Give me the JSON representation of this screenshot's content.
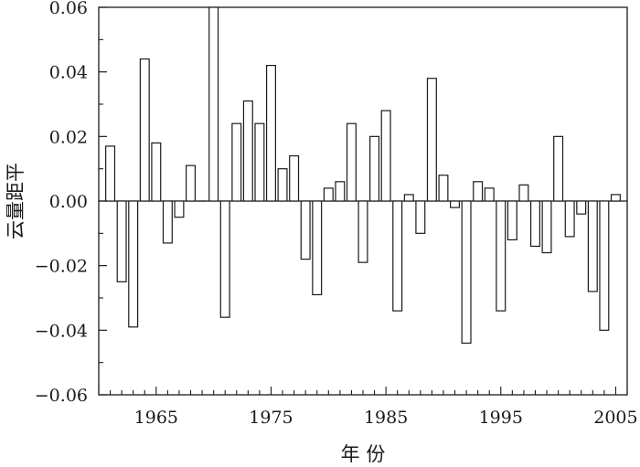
{
  "chart_data": {
    "type": "bar",
    "xlabel": "年 份",
    "ylabel": "云量距平",
    "xlim": [
      1960,
      2006
    ],
    "ylim": [
      -0.06,
      0.06
    ],
    "grid": false,
    "y_ticks": [
      {
        "value": 0.06,
        "label": "0.06"
      },
      {
        "value": 0.04,
        "label": "0.04"
      },
      {
        "value": 0.02,
        "label": "0.02"
      },
      {
        "value": 0.0,
        "label": "0.00"
      },
      {
        "value": -0.02,
        "label": "−0.02"
      },
      {
        "value": -0.04,
        "label": "−0.04"
      },
      {
        "value": -0.06,
        "label": "−0.06"
      }
    ],
    "x_ticks": [
      {
        "value": 1965,
        "label": "1965"
      },
      {
        "value": 1975,
        "label": "1975"
      },
      {
        "value": 1985,
        "label": "1985"
      },
      {
        "value": 1995,
        "label": "1995"
      },
      {
        "value": 2005,
        "label": "2005"
      }
    ],
    "bar_fill": "#ffffff",
    "bar_stroke": "#1a1a1a",
    "x": [
      1961,
      1962,
      1963,
      1964,
      1965,
      1966,
      1967,
      1968,
      1969,
      1970,
      1971,
      1972,
      1973,
      1974,
      1975,
      1976,
      1977,
      1978,
      1979,
      1980,
      1981,
      1982,
      1983,
      1984,
      1985,
      1986,
      1987,
      1988,
      1989,
      1990,
      1991,
      1992,
      1993,
      1994,
      1995,
      1996,
      1997,
      1998,
      1999,
      2000,
      2001,
      2002,
      2003,
      2004,
      2005
    ],
    "values": [
      0.017,
      -0.025,
      -0.039,
      0.044,
      0.018,
      -0.013,
      -0.005,
      0.011,
      0.0,
      0.06,
      -0.036,
      0.024,
      0.031,
      0.024,
      0.042,
      0.01,
      0.014,
      -0.018,
      -0.029,
      0.004,
      0.006,
      0.024,
      -0.019,
      0.02,
      0.028,
      -0.034,
      0.002,
      -0.01,
      0.038,
      0.008,
      -0.002,
      -0.044,
      0.006,
      0.004,
      -0.034,
      -0.012,
      0.005,
      -0.014,
      -0.016,
      0.02,
      -0.011,
      -0.004,
      -0.028,
      -0.04,
      0.002
    ]
  }
}
